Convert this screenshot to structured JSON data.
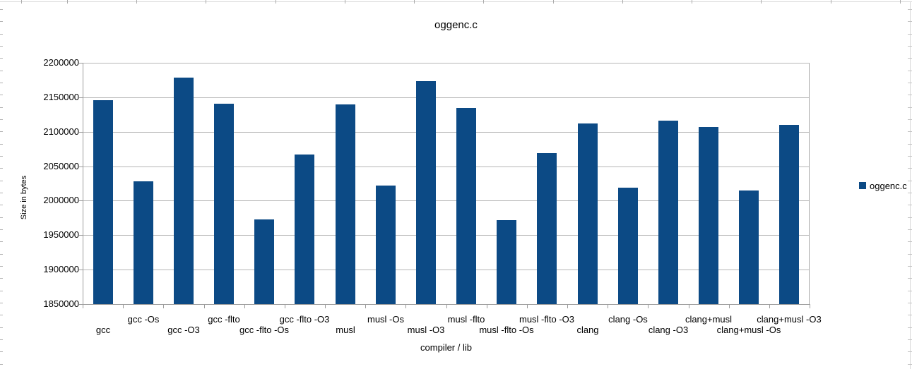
{
  "chart_data": {
    "type": "bar",
    "title": "oggenc.c",
    "xlabel": "compiler / lib",
    "ylabel": "Size in bytes",
    "legend": [
      "oggenc.c"
    ],
    "legend_position": "right",
    "grid": "horizontal",
    "ylim": [
      1850000,
      2200000
    ],
    "ytick_step": 50000,
    "y_ticks": [
      "2200000",
      "2150000",
      "2100000",
      "2050000",
      "2000000",
      "1950000",
      "1900000",
      "1850000"
    ],
    "categories": [
      "gcc",
      "gcc -Os",
      "gcc -O3",
      "gcc -flto",
      "gcc -flto -Os",
      "gcc -flto -O3",
      "musl",
      "musl -Os",
      "musl -O3",
      "musl -flto",
      "musl -flto -Os",
      "musl -flto -O3",
      "clang",
      "clang -Os",
      "clang -O3",
      "clang+musl",
      "clang+musl -Os",
      "clang+musl -O3"
    ],
    "values": [
      2146000,
      2028000,
      2179000,
      2141000,
      1973000,
      2067000,
      2140000,
      2022000,
      2173000,
      2134000,
      1972000,
      2069000,
      2112000,
      2019000,
      2116000,
      2107000,
      2015000,
      2110000
    ],
    "series_color": "#0c4a85",
    "gridline_color": "#b6b6b6",
    "axis_color": "#9b9b9b"
  }
}
